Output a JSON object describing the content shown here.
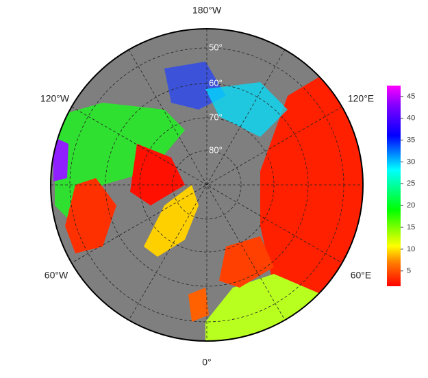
{
  "map": {
    "lon_labels": [
      "180°W",
      "120°E",
      "60°E",
      "0°",
      "60°W",
      "120°W"
    ],
    "lat_labels": [
      "50°",
      "60°",
      "70°",
      "80°"
    ],
    "colorbar": {
      "range": [
        1.5,
        47.5
      ],
      "ticks": [
        5,
        10,
        15,
        20,
        25,
        30,
        35,
        40,
        45
      ]
    }
  }
}
